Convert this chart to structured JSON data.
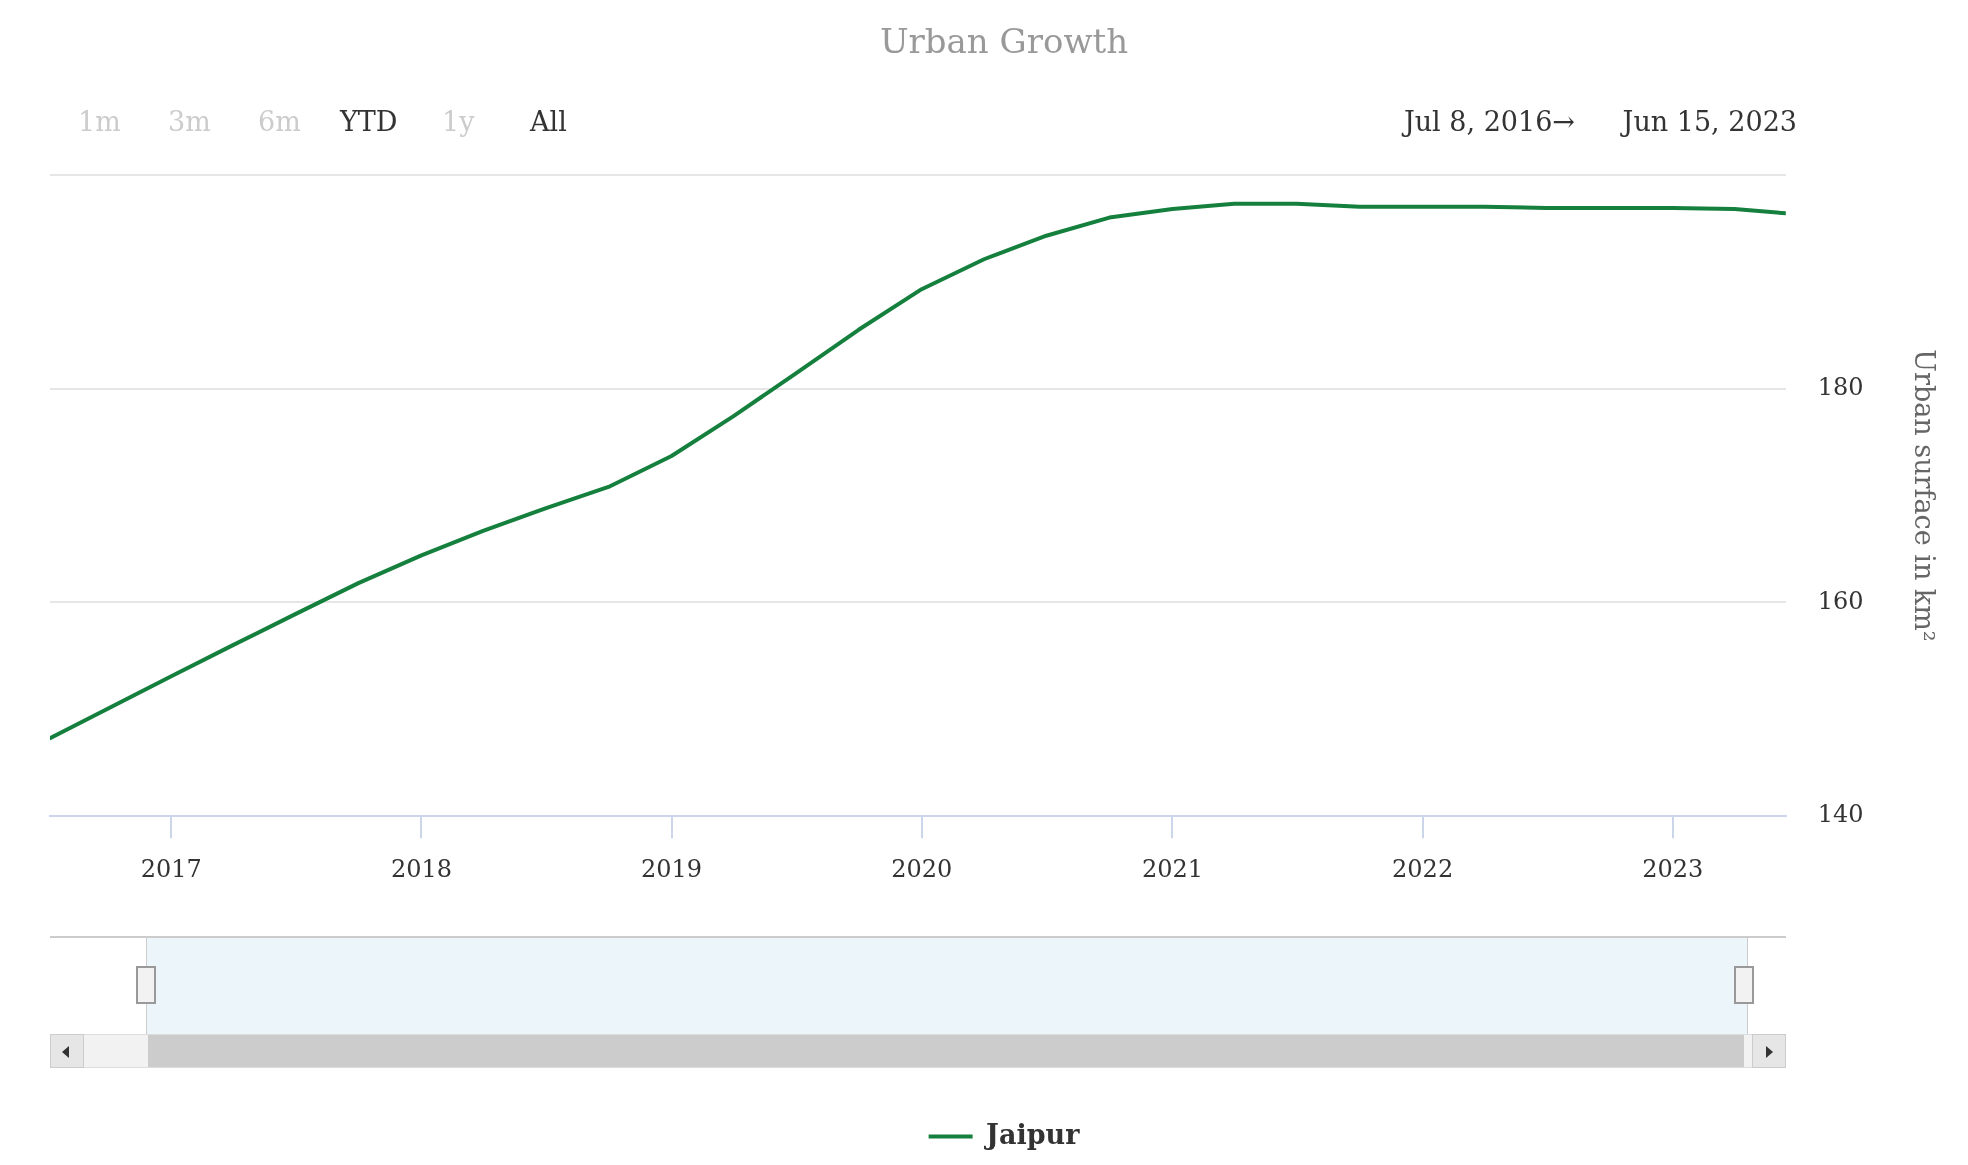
{
  "chart_data": {
    "type": "line",
    "title": "Urban Growth",
    "ylabel": "Urban surface in km²",
    "x": [
      "2016-07-08",
      "2017-01-01",
      "2017-04-01",
      "2017-07-01",
      "2017-10-01",
      "2018-01-01",
      "2018-04-01",
      "2018-07-01",
      "2018-10-01",
      "2019-01-01",
      "2019-04-01",
      "2019-07-01",
      "2019-10-01",
      "2020-01-01",
      "2020-04-01",
      "2020-07-01",
      "2020-10-01",
      "2021-01-01",
      "2021-04-01",
      "2021-07-01",
      "2021-10-01",
      "2022-01-01",
      "2022-04-01",
      "2022-07-01",
      "2022-10-01",
      "2023-01-01",
      "2023-04-01",
      "2023-06-15"
    ],
    "series": [
      {
        "name": "Jaipur",
        "color": "#15803d",
        "values": [
          147.3,
          153.1,
          156,
          158.9,
          161.8,
          164.4,
          166.7,
          168.8,
          170.8,
          173.7,
          177.4,
          181.4,
          185.5,
          189.3,
          192.1,
          194.3,
          196,
          196.8,
          197.3,
          197.3,
          197,
          197,
          197,
          196.9,
          196.9,
          196.9,
          196.8,
          196.4
        ]
      }
    ],
    "xlim": [
      "2016-07-08",
      "2023-06-15"
    ],
    "xticks": [
      {
        "value": "2017",
        "label": "2017"
      },
      {
        "value": "2018",
        "label": "2018"
      },
      {
        "value": "2019",
        "label": "2019"
      },
      {
        "value": "2020",
        "label": "2020"
      },
      {
        "value": "2021",
        "label": "2021"
      },
      {
        "value": "2022",
        "label": "2022"
      },
      {
        "value": "2023",
        "label": "2023"
      }
    ],
    "ylim": [
      140,
      200
    ],
    "yticks": [
      140,
      160,
      180,
      {
        "value": 200,
        "label": null
      }
    ],
    "grid": "y",
    "legend": "bottom",
    "marker": "none",
    "line_style": "solid",
    "annotations": [
      "1m",
      "3m",
      "6m",
      "YTD",
      "1y",
      "All",
      "Jul 8, 2016→",
      "Jun 15, 2023"
    ]
  }
}
